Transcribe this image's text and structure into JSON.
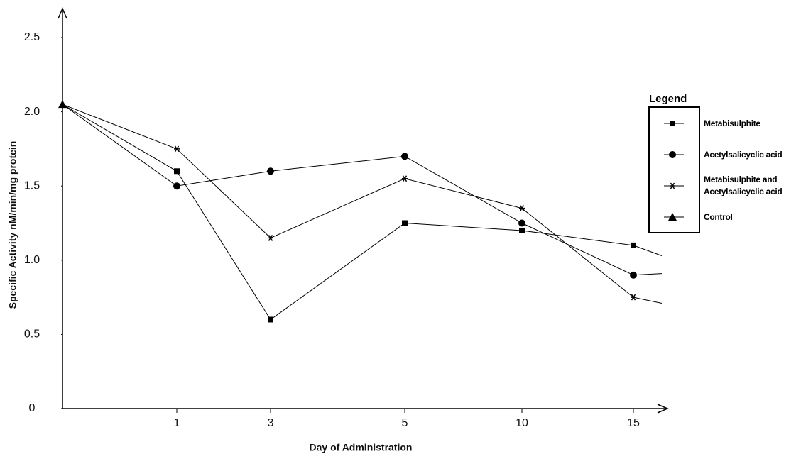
{
  "chart_data": {
    "type": "line",
    "x_label": "Day of Administration",
    "y_label": "Specific Activity nM/min/mg protein",
    "legend_title": "Legend",
    "categories": [
      null,
      "1",
      "3",
      "5",
      "10",
      "15",
      null
    ],
    "series": [
      {
        "name": "Metabisulphite",
        "color": "#000000",
        "marker": "square",
        "values": [
          2.05,
          1.6,
          0.6,
          1.25,
          1.2,
          1.1,
          1.03
        ]
      },
      {
        "name": "Acetylsalicyclic acid",
        "color": "#000000",
        "marker": "circle",
        "values": [
          2.05,
          1.5,
          1.6,
          1.7,
          1.25,
          0.9,
          0.91
        ]
      },
      {
        "name": "Metabisulphite and Acetylsalicyclic acid",
        "color": "#000000",
        "marker": "star",
        "values": [
          2.05,
          1.75,
          1.15,
          1.55,
          1.35,
          0.75,
          0.71
        ]
      },
      {
        "name": "Control",
        "color": "#000000",
        "marker": "triangle",
        "values": [
          2.05,
          null,
          null,
          null,
          null,
          null,
          null
        ]
      }
    ],
    "ylim": [
      0,
      2.5
    ],
    "yticks": [
      0,
      0.5,
      {
        "value": 1.0,
        "label": "1.0"
      },
      1.5,
      {
        "value": 2.0,
        "label": "2.0"
      },
      2.5
    ],
    "grid": false,
    "legend": "right"
  }
}
